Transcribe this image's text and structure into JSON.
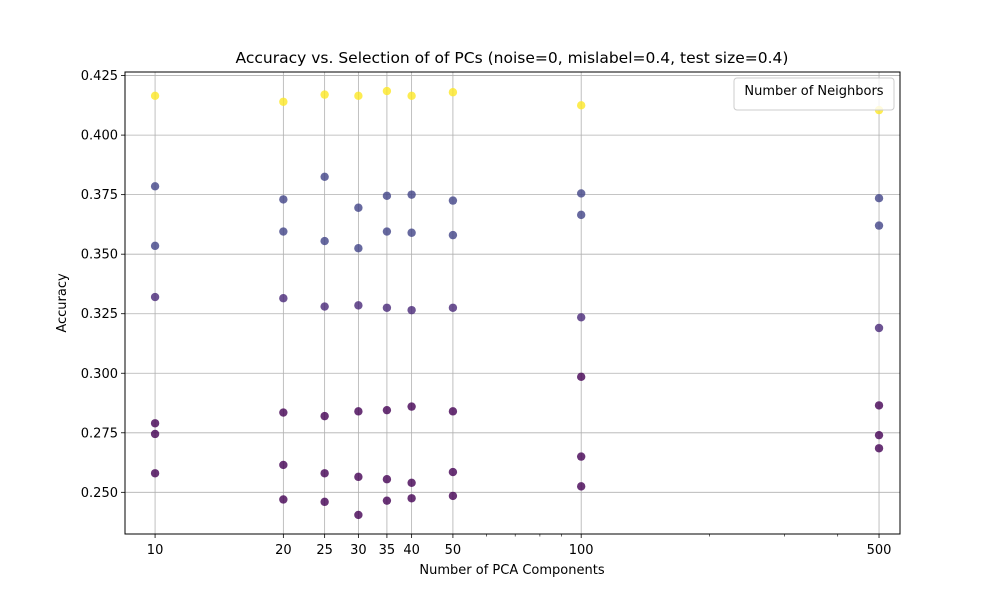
{
  "chart_data": {
    "type": "scatter",
    "title": "Accuracy vs. Selection of of PCs (noise=0, mislabel=0.4, test size=0.4)",
    "xlabel": "Number of PCA Components",
    "ylabel": "Accuracy",
    "x_scale": "log",
    "xlim": [
      8.5,
      560
    ],
    "ylim": [
      0.2325,
      0.4265
    ],
    "x_ticks": [
      10,
      20,
      25,
      30,
      35,
      40,
      50,
      100,
      500
    ],
    "x_tick_labels": [
      "10",
      "20",
      "25",
      "30",
      "35",
      "40",
      "50",
      "100",
      "500"
    ],
    "x_minor_ticks": [
      60,
      70,
      80,
      90,
      200,
      300,
      400
    ],
    "y_ticks": [
      0.25,
      0.275,
      0.3,
      0.325,
      0.35,
      0.375,
      0.4,
      0.425
    ],
    "y_tick_labels": [
      "0.250",
      "0.275",
      "0.300",
      "0.325",
      "0.350",
      "0.375",
      "0.400",
      "0.425"
    ],
    "grid": true,
    "legend": {
      "title": "Number of Neighbors",
      "placement": "top-right"
    },
    "colormap": "viridis",
    "point_alpha": 0.8,
    "colors": {
      "high_accuracy": "#fde725",
      "mid_accuracy": "#414487",
      "low_accuracy": "#440154",
      "grid": "#b0b0b0"
    },
    "points": [
      {
        "x": 10,
        "y": 0.4165,
        "color": "#fde725"
      },
      {
        "x": 10,
        "y": 0.3785,
        "color": "#414487"
      },
      {
        "x": 10,
        "y": 0.3535,
        "color": "#414487"
      },
      {
        "x": 10,
        "y": 0.332,
        "color": "#482878"
      },
      {
        "x": 10,
        "y": 0.279,
        "color": "#440154"
      },
      {
        "x": 10,
        "y": 0.2745,
        "color": "#440154"
      },
      {
        "x": 10,
        "y": 0.258,
        "color": "#440154"
      },
      {
        "x": 20,
        "y": 0.414,
        "color": "#fde725"
      },
      {
        "x": 20,
        "y": 0.373,
        "color": "#414487"
      },
      {
        "x": 20,
        "y": 0.3595,
        "color": "#414487"
      },
      {
        "x": 20,
        "y": 0.3315,
        "color": "#482878"
      },
      {
        "x": 20,
        "y": 0.2835,
        "color": "#440154"
      },
      {
        "x": 20,
        "y": 0.2615,
        "color": "#440154"
      },
      {
        "x": 20,
        "y": 0.247,
        "color": "#440154"
      },
      {
        "x": 25,
        "y": 0.417,
        "color": "#fde725"
      },
      {
        "x": 25,
        "y": 0.3825,
        "color": "#414487"
      },
      {
        "x": 25,
        "y": 0.3555,
        "color": "#414487"
      },
      {
        "x": 25,
        "y": 0.328,
        "color": "#482878"
      },
      {
        "x": 25,
        "y": 0.282,
        "color": "#440154"
      },
      {
        "x": 25,
        "y": 0.258,
        "color": "#440154"
      },
      {
        "x": 25,
        "y": 0.246,
        "color": "#440154"
      },
      {
        "x": 30,
        "y": 0.4165,
        "color": "#fde725"
      },
      {
        "x": 30,
        "y": 0.3695,
        "color": "#414487"
      },
      {
        "x": 30,
        "y": 0.3525,
        "color": "#414487"
      },
      {
        "x": 30,
        "y": 0.3285,
        "color": "#482878"
      },
      {
        "x": 30,
        "y": 0.284,
        "color": "#440154"
      },
      {
        "x": 30,
        "y": 0.2565,
        "color": "#440154"
      },
      {
        "x": 30,
        "y": 0.2405,
        "color": "#440154"
      },
      {
        "x": 35,
        "y": 0.4185,
        "color": "#fde725"
      },
      {
        "x": 35,
        "y": 0.3745,
        "color": "#414487"
      },
      {
        "x": 35,
        "y": 0.3595,
        "color": "#414487"
      },
      {
        "x": 35,
        "y": 0.3275,
        "color": "#482878"
      },
      {
        "x": 35,
        "y": 0.2845,
        "color": "#440154"
      },
      {
        "x": 35,
        "y": 0.2555,
        "color": "#440154"
      },
      {
        "x": 35,
        "y": 0.2465,
        "color": "#440154"
      },
      {
        "x": 40,
        "y": 0.4165,
        "color": "#fde725"
      },
      {
        "x": 40,
        "y": 0.375,
        "color": "#414487"
      },
      {
        "x": 40,
        "y": 0.359,
        "color": "#414487"
      },
      {
        "x": 40,
        "y": 0.3265,
        "color": "#482878"
      },
      {
        "x": 40,
        "y": 0.286,
        "color": "#440154"
      },
      {
        "x": 40,
        "y": 0.254,
        "color": "#440154"
      },
      {
        "x": 40,
        "y": 0.2475,
        "color": "#440154"
      },
      {
        "x": 50,
        "y": 0.418,
        "color": "#fde725"
      },
      {
        "x": 50,
        "y": 0.3725,
        "color": "#414487"
      },
      {
        "x": 50,
        "y": 0.358,
        "color": "#414487"
      },
      {
        "x": 50,
        "y": 0.3275,
        "color": "#482878"
      },
      {
        "x": 50,
        "y": 0.284,
        "color": "#440154"
      },
      {
        "x": 50,
        "y": 0.2585,
        "color": "#440154"
      },
      {
        "x": 50,
        "y": 0.2485,
        "color": "#440154"
      },
      {
        "x": 100,
        "y": 0.4125,
        "color": "#fde725"
      },
      {
        "x": 100,
        "y": 0.3755,
        "color": "#414487"
      },
      {
        "x": 100,
        "y": 0.3665,
        "color": "#414487"
      },
      {
        "x": 100,
        "y": 0.3235,
        "color": "#482878"
      },
      {
        "x": 100,
        "y": 0.2985,
        "color": "#440154"
      },
      {
        "x": 100,
        "y": 0.265,
        "color": "#440154"
      },
      {
        "x": 100,
        "y": 0.2525,
        "color": "#440154"
      },
      {
        "x": 500,
        "y": 0.4105,
        "color": "#fde725"
      },
      {
        "x": 500,
        "y": 0.3735,
        "color": "#414487"
      },
      {
        "x": 500,
        "y": 0.362,
        "color": "#414487"
      },
      {
        "x": 500,
        "y": 0.319,
        "color": "#482878"
      },
      {
        "x": 500,
        "y": 0.2865,
        "color": "#440154"
      },
      {
        "x": 500,
        "y": 0.274,
        "color": "#440154"
      },
      {
        "x": 500,
        "y": 0.2685,
        "color": "#440154"
      }
    ]
  }
}
